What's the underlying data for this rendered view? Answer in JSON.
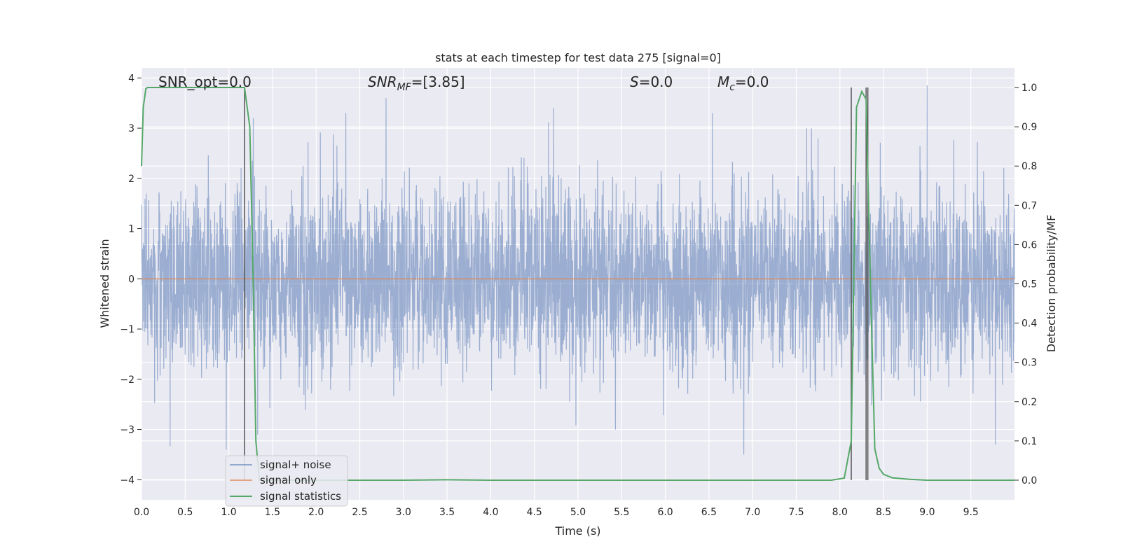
{
  "chart_data": {
    "type": "line",
    "title": "stats at each timestep for test data 275 [signal=0]",
    "xlabel": "Time (s)",
    "ylabel_left": "Whitened strain",
    "ylabel_right": "Detection probability/MF",
    "xlim": [
      0,
      10
    ],
    "ylim_left": [
      -4.4,
      4.2
    ],
    "ylim_right": [
      -0.05,
      1.05
    ],
    "x_ticks": [
      "0.0",
      "0.5",
      "1.0",
      "1.5",
      "2.0",
      "2.5",
      "3.0",
      "3.5",
      "4.0",
      "4.5",
      "5.0",
      "5.5",
      "6.0",
      "6.5",
      "7.0",
      "7.5",
      "8.0",
      "8.5",
      "9.0",
      "9.5"
    ],
    "y_ticks_left": [
      "−4",
      "−3",
      "−2",
      "−1",
      "0",
      "1",
      "2",
      "3",
      "4"
    ],
    "y_ticks_right": [
      "0.0",
      "0.1",
      "0.2",
      "0.3",
      "0.4",
      "0.5",
      "0.6",
      "0.7",
      "0.8",
      "0.9",
      "1.0"
    ],
    "grid": true,
    "legend_placement": "lower-left",
    "legend": [
      {
        "label": "signal+ noise",
        "color": "#4c72b0"
      },
      {
        "label": "signal only",
        "color": "#dd8452"
      },
      {
        "label": "signal statistics",
        "color": "#55a868"
      }
    ],
    "annotations": {
      "snr_opt": "SNR_opt=0.0",
      "snr_mf_prefix": "SNR",
      "snr_mf_sub": "MF",
      "snr_mf_value": "=[3.85]",
      "s_prefix": "S",
      "s_value": "=0.0",
      "mc_prefix": "M",
      "mc_sub": "c",
      "mc_value": "=0.0"
    },
    "series": [
      {
        "name": "signal+ noise",
        "color": "#4c72b0",
        "description": "dense whitened noise",
        "noise_std": 0.9,
        "peaks": [
          {
            "x": 0.97,
            "y": -3.4
          },
          {
            "x": 1.28,
            "y": 3.2
          },
          {
            "x": 1.33,
            "y": -3.1
          },
          {
            "x": 2.8,
            "y": 3.6
          },
          {
            "x": 4.72,
            "y": 3.4
          },
          {
            "x": 5.43,
            "y": -3.0
          },
          {
            "x": 6.54,
            "y": 3.3
          },
          {
            "x": 6.9,
            "y": -3.5
          },
          {
            "x": 9.0,
            "y": 3.85
          },
          {
            "x": 9.78,
            "y": -3.3
          },
          {
            "x": 2.34,
            "y": 3.3
          },
          {
            "x": 7.62,
            "y": 3.0
          }
        ]
      },
      {
        "name": "signal only",
        "color": "#dd8452",
        "x": [
          0,
          10
        ],
        "y": [
          0,
          0
        ]
      },
      {
        "name": "signal statistics",
        "color": "#55a868",
        "axis": "right",
        "x": [
          0.0,
          0.02,
          0.05,
          0.07,
          0.12,
          0.2,
          0.4,
          0.8,
          1.0,
          1.15,
          1.18,
          1.24,
          1.28,
          1.31,
          1.35,
          1.5,
          2.0,
          3.0,
          3.5,
          4.0,
          5.0,
          6.0,
          7.0,
          7.9,
          8.05,
          8.13,
          8.19,
          8.25,
          8.3,
          8.35,
          8.4,
          8.45,
          8.5,
          8.6,
          8.8,
          9.0,
          9.5,
          10.0
        ],
        "y": [
          0.8,
          0.95,
          0.997,
          1.0,
          1.0,
          1.0,
          1.0,
          1.0,
          1.0,
          1.0,
          1.0,
          0.9,
          0.5,
          0.1,
          0.0,
          0.0,
          0.0,
          0.0,
          0.001,
          0.0,
          0.0,
          0.0,
          0.0,
          0.0,
          0.005,
          0.1,
          0.95,
          0.99,
          0.97,
          0.5,
          0.08,
          0.03,
          0.015,
          0.006,
          0.002,
          0.0,
          0.0,
          0.0
        ]
      }
    ],
    "vertical_markers": [
      1.18,
      8.13,
      8.3,
      8.32
    ]
  }
}
